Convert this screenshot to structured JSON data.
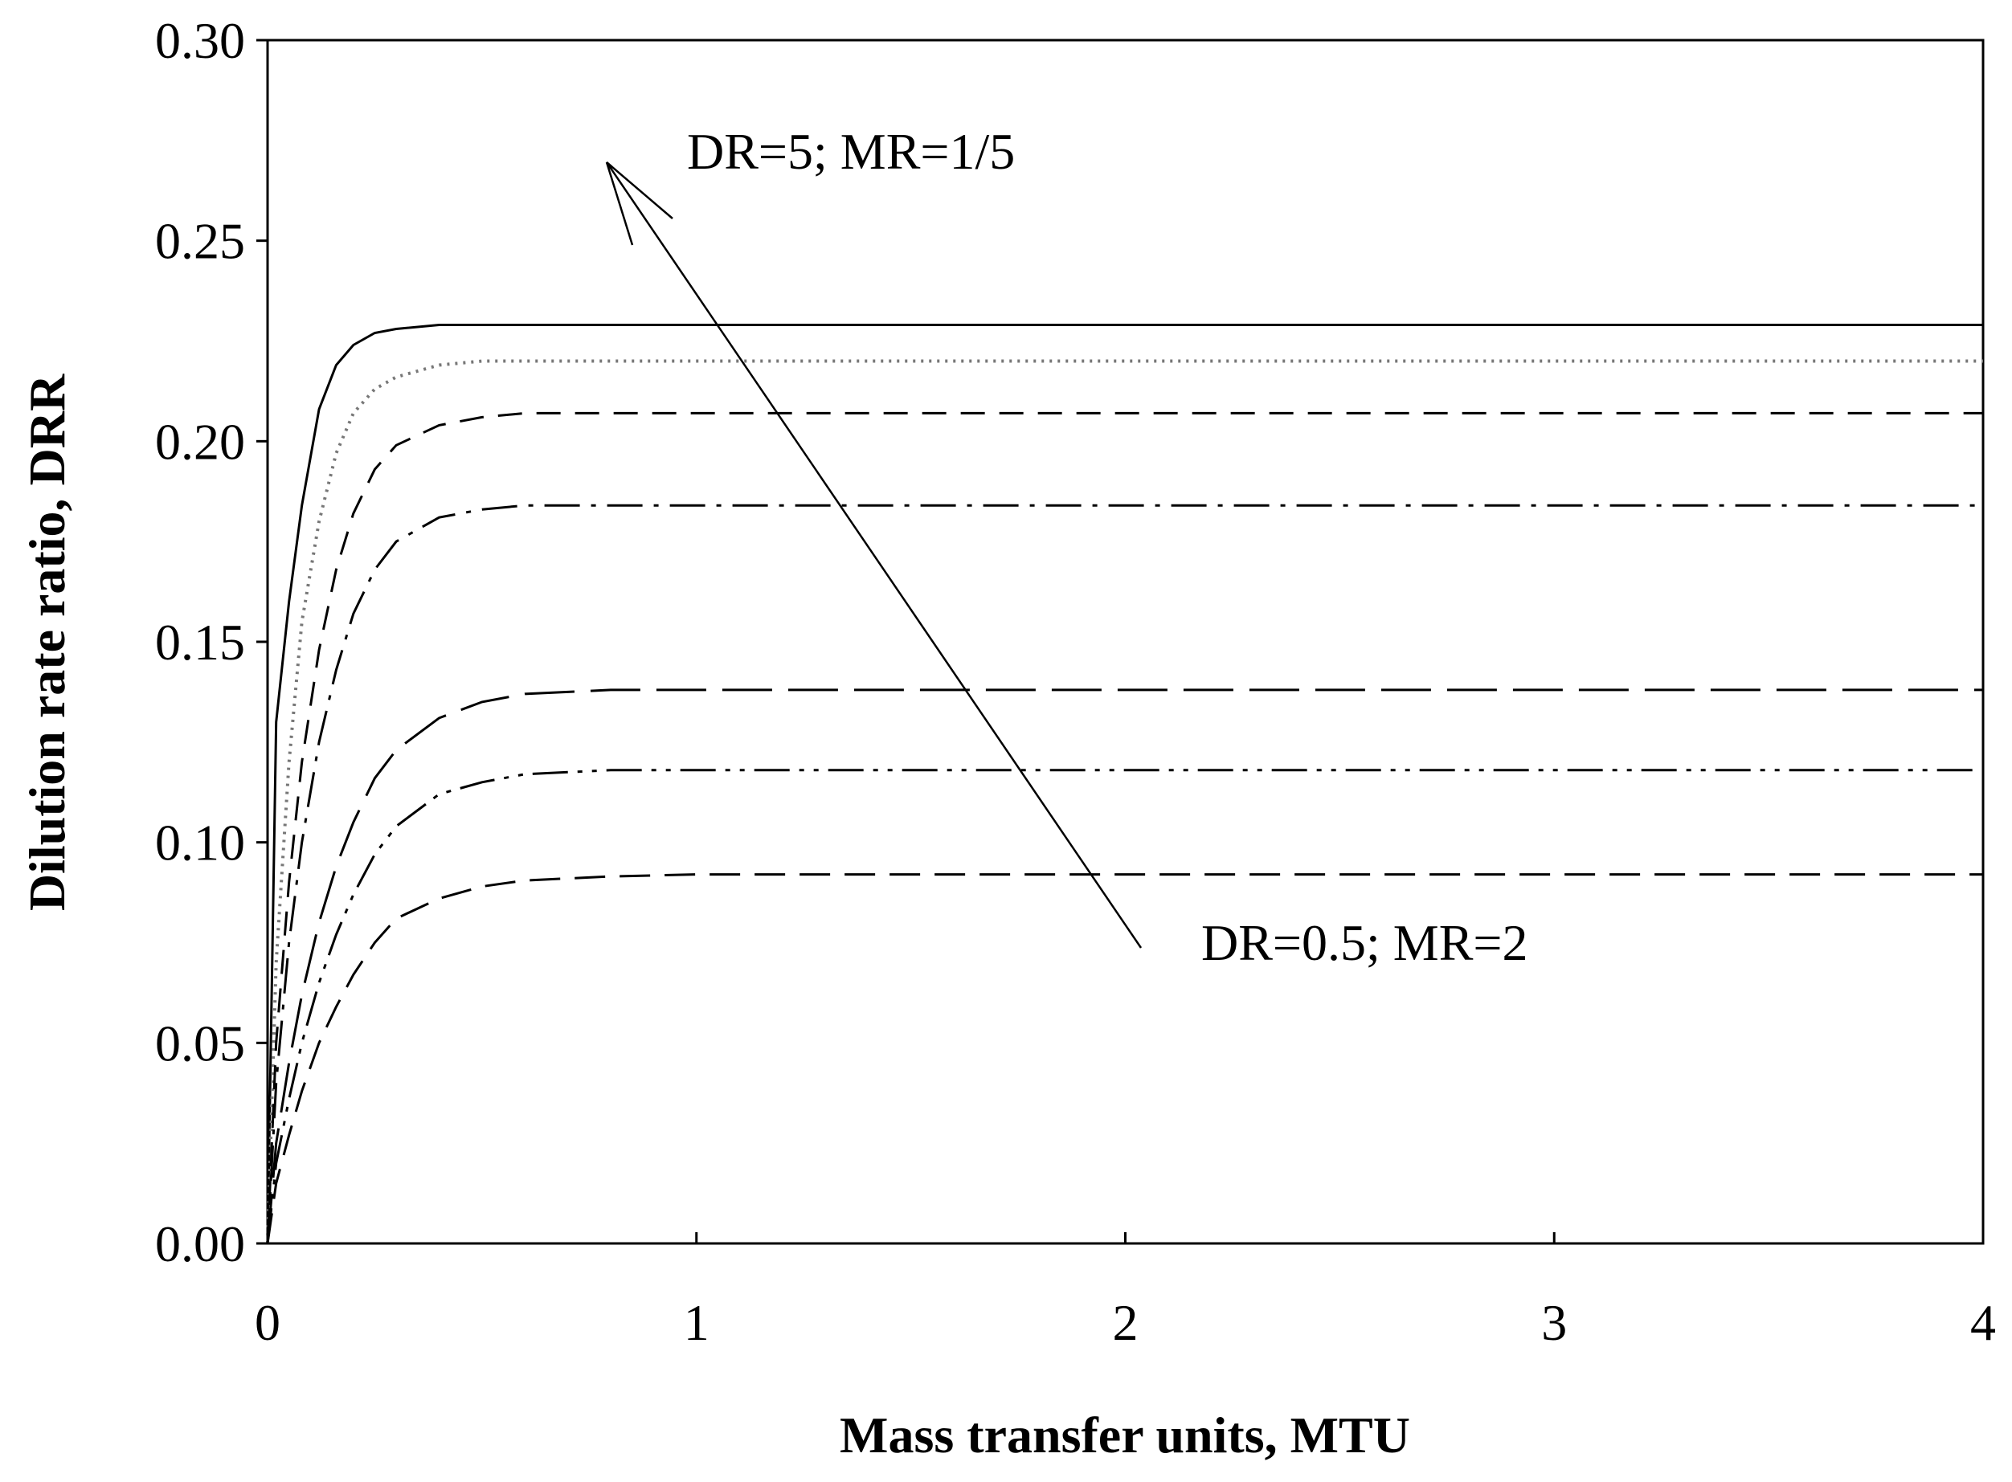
{
  "chart_data": {
    "type": "line",
    "xlabel": "Mass transfer units, MTU",
    "ylabel": "Dilution rate ratio, DRR",
    "xlim": [
      0,
      4
    ],
    "ylim": [
      0,
      0.3
    ],
    "xticks": [
      "0",
      "1",
      "2",
      "3",
      "4"
    ],
    "yticks": [
      "0.00",
      "0.05",
      "0.10",
      "0.15",
      "0.20",
      "0.25",
      "0.30"
    ],
    "grid": false,
    "legend": "none",
    "annotations": {
      "top": "DR=5; MR=1/5",
      "bottom": "DR=0.5; MR=2"
    },
    "x": [
      0,
      0.02,
      0.05,
      0.08,
      0.12,
      0.16,
      0.2,
      0.25,
      0.3,
      0.4,
      0.5,
      0.6,
      0.8,
      1.0,
      1.5,
      2,
      3,
      4
    ],
    "series": [
      {
        "style": "solid",
        "values": [
          0,
          0.13,
          0.16,
          0.184,
          0.208,
          0.219,
          0.224,
          0.227,
          0.228,
          0.229,
          0.229,
          0.229,
          0.229,
          0.229,
          0.229,
          0.229,
          0.229,
          0.229
        ]
      },
      {
        "style": "dotted",
        "values": [
          0,
          0.07,
          0.12,
          0.155,
          0.18,
          0.197,
          0.207,
          0.213,
          0.216,
          0.219,
          0.22,
          0.22,
          0.22,
          0.22,
          0.22,
          0.22,
          0.22,
          0.22
        ]
      },
      {
        "style": "short-dash",
        "values": [
          0,
          0.05,
          0.09,
          0.12,
          0.148,
          0.168,
          0.182,
          0.193,
          0.199,
          0.204,
          0.206,
          0.207,
          0.207,
          0.207,
          0.207,
          0.207,
          0.207,
          0.207
        ]
      },
      {
        "style": "dash-dot",
        "values": [
          0,
          0.04,
          0.075,
          0.1,
          0.125,
          0.143,
          0.157,
          0.168,
          0.175,
          0.181,
          0.183,
          0.184,
          0.184,
          0.184,
          0.184,
          0.184,
          0.184,
          0.184
        ]
      },
      {
        "style": "long-dash",
        "values": [
          0,
          0.025,
          0.045,
          0.062,
          0.08,
          0.094,
          0.105,
          0.116,
          0.123,
          0.131,
          0.135,
          0.137,
          0.138,
          0.138,
          0.138,
          0.138,
          0.138,
          0.138
        ]
      },
      {
        "style": "dash-dot-dot",
        "values": [
          0,
          0.02,
          0.036,
          0.05,
          0.065,
          0.077,
          0.087,
          0.097,
          0.104,
          0.112,
          0.115,
          0.117,
          0.118,
          0.118,
          0.118,
          0.118,
          0.118,
          0.118
        ]
      },
      {
        "style": "medium-dash",
        "values": [
          0,
          0.015,
          0.027,
          0.038,
          0.05,
          0.059,
          0.067,
          0.075,
          0.081,
          0.086,
          0.089,
          0.0905,
          0.0915,
          0.092,
          0.092,
          0.092,
          0.092,
          0.092
        ]
      }
    ]
  }
}
